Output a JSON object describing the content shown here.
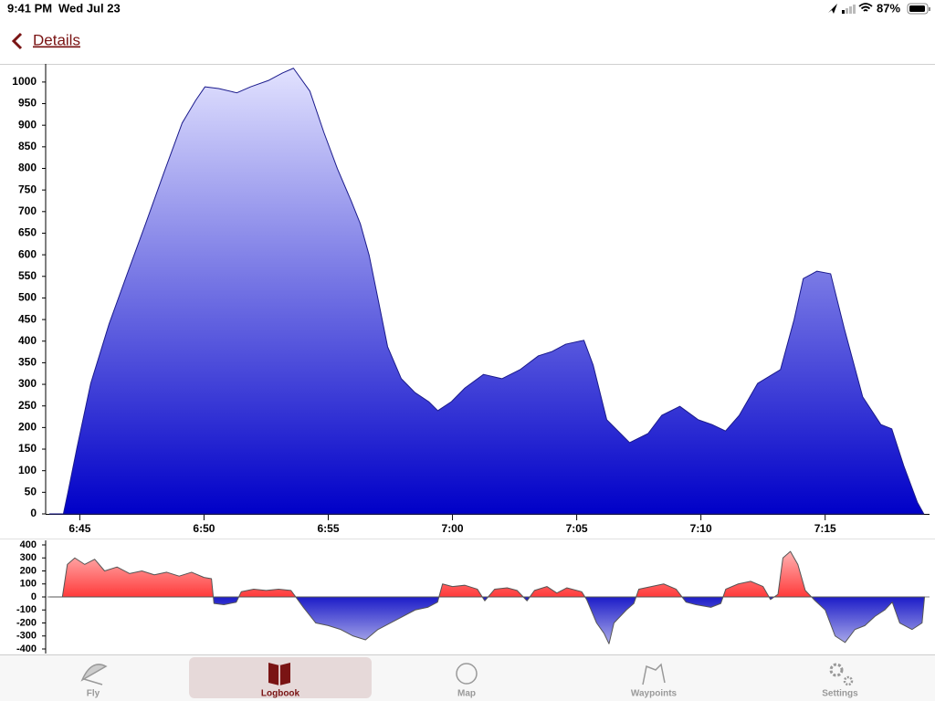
{
  "status_bar": {
    "time": "9:41 PM",
    "date": "Wed Jul 23",
    "battery": "87%"
  },
  "nav": {
    "back": "Details"
  },
  "chart_data": [
    {
      "type": "area",
      "color": "#0000c8",
      "gradient_top_color": "#e4e4ff",
      "stroke_color": "#1a1a8c",
      "x": [
        403.79,
        404.34,
        404.52,
        404.89,
        405.44,
        406.18,
        406.91,
        407.65,
        408.38,
        409.12,
        409.67,
        410.04,
        410.59,
        411.32,
        411.88,
        412.61,
        413.16,
        413.6,
        414.26,
        414.82,
        415.37,
        415.92,
        416.29,
        416.65,
        417.02,
        417.39,
        417.94,
        418.49,
        419.04,
        419.41,
        419.96,
        420.51,
        421.25,
        421.99,
        422.72,
        423.46,
        424.01,
        424.56,
        425.29,
        425.66,
        426.21,
        427.13,
        427.87,
        428.42,
        429.15,
        429.89,
        430.44,
        430.99,
        431.54,
        432.28,
        433.2,
        433.75,
        434.12,
        434.67,
        435.22,
        435.77,
        436.51,
        437.24,
        437.68,
        438.16,
        438.71,
        438.97
      ],
      "values": [
        0,
        0,
        49,
        154,
        302,
        440,
        556,
        672,
        789,
        905,
        958,
        989,
        985,
        975,
        989,
        1004,
        1021,
        1032,
        979,
        884,
        799,
        725,
        672,
        598,
        493,
        387,
        313,
        281,
        260,
        239,
        260,
        292,
        323,
        313,
        334,
        366,
        376,
        393,
        402,
        345,
        218,
        165,
        186,
        228,
        249,
        218,
        207,
        192,
        228,
        302,
        334,
        450,
        545,
        562,
        556,
        429,
        271,
        207,
        197,
        112,
        27,
        0
      ],
      "xlim": [
        403.7,
        439.2
      ],
      "ylim": [
        0,
        1042
      ],
      "xticks": [
        {
          "value": 405,
          "label": "6:45"
        },
        {
          "value": 410,
          "label": "6:50"
        },
        {
          "value": 415,
          "label": "6:55"
        },
        {
          "value": 420,
          "label": "7:00"
        },
        {
          "value": 425,
          "label": "7:05"
        },
        {
          "value": 430,
          "label": "7:10"
        },
        {
          "value": 435,
          "label": "7:15"
        }
      ],
      "yticks": [
        0,
        50,
        100,
        150,
        200,
        250,
        300,
        350,
        400,
        450,
        500,
        550,
        600,
        650,
        700,
        750,
        800,
        850,
        900,
        950,
        1000
      ]
    },
    {
      "type": "signed-area",
      "positive_color": "#ff3a3a",
      "negative_color": "#1c1cc8",
      "stroke_color": "#555555",
      "x": [
        403.8,
        404.3,
        404.5,
        404.8,
        405.2,
        405.6,
        406,
        406.5,
        407,
        407.5,
        408,
        408.5,
        409,
        409.5,
        410,
        410.3,
        410.4,
        410.8,
        411.3,
        411.5,
        412,
        412.5,
        413,
        413.5,
        414,
        414.5,
        415,
        415.5,
        416,
        416.5,
        417,
        417.5,
        418,
        418.5,
        419,
        419.4,
        419.6,
        420,
        420.5,
        421,
        421.3,
        421.7,
        422.2,
        422.6,
        423,
        423.3,
        423.8,
        424.2,
        424.6,
        425.2,
        425.4,
        425.8,
        426.1,
        426.3,
        426.5,
        427,
        427.3,
        427.5,
        428,
        428.5,
        429,
        429.4,
        429.8,
        430.4,
        430.8,
        431,
        431.5,
        432,
        432.5,
        432.8,
        433.1,
        433.3,
        433.6,
        433.9,
        434.2,
        434.6,
        435,
        435.4,
        435.8,
        436.2,
        436.6,
        437,
        437.4,
        437.7,
        438,
        438.5,
        438.9,
        439
      ],
      "values": [
        0,
        0,
        250,
        300,
        250,
        290,
        200,
        230,
        180,
        200,
        170,
        190,
        160,
        190,
        150,
        140,
        -50,
        -60,
        -40,
        40,
        60,
        50,
        60,
        50,
        -80,
        -200,
        -220,
        -250,
        -300,
        -330,
        -250,
        -200,
        -150,
        -100,
        -80,
        -40,
        100,
        80,
        90,
        60,
        -30,
        60,
        70,
        50,
        -30,
        50,
        80,
        30,
        70,
        40,
        -20,
        -200,
        -280,
        -360,
        -200,
        -100,
        -50,
        60,
        80,
        100,
        60,
        -40,
        -60,
        -80,
        -50,
        60,
        100,
        120,
        80,
        -20,
        20,
        300,
        350,
        250,
        50,
        -30,
        -100,
        -300,
        -350,
        -250,
        -220,
        -150,
        -100,
        -40,
        -200,
        -250,
        -200,
        0
      ],
      "xlim": [
        403.7,
        439.2
      ],
      "ylim": [
        -435,
        435
      ],
      "yticks": [
        -400,
        -300,
        -200,
        -100,
        0,
        100,
        200,
        300,
        400
      ]
    }
  ],
  "tab_bar": {
    "tabs": [
      "Fly",
      "Logbook",
      "Map",
      "Waypoints",
      "Settings"
    ],
    "selected": 1
  }
}
